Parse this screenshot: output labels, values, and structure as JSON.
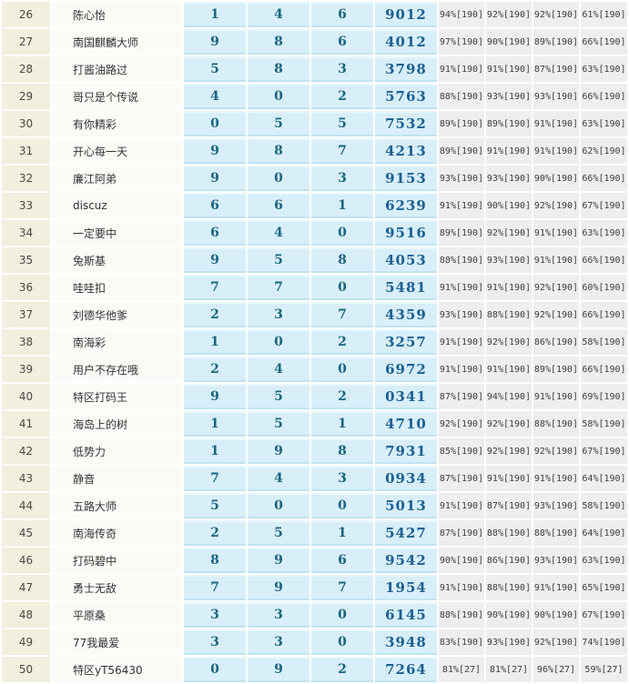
{
  "table": {
    "rows": [
      {
        "rank": "26",
        "name": "陈心怡",
        "digits": [
          "1",
          "4",
          "6"
        ],
        "number": "9012",
        "stats": [
          "94%[190]",
          "92%[190]",
          "92%[190]",
          "61%[190]"
        ]
      },
      {
        "rank": "27",
        "name": "南国麒麟大师",
        "digits": [
          "9",
          "8",
          "6"
        ],
        "number": "4012",
        "stats": [
          "97%[190]",
          "90%[190]",
          "89%[190]",
          "66%[190]"
        ]
      },
      {
        "rank": "28",
        "name": "打酱油路过",
        "digits": [
          "5",
          "8",
          "3"
        ],
        "number": "3798",
        "stats": [
          "91%[190]",
          "91%[190]",
          "87%[190]",
          "63%[190]"
        ]
      },
      {
        "rank": "29",
        "name": "哥只是个传说",
        "digits": [
          "4",
          "0",
          "2"
        ],
        "number": "5763",
        "stats": [
          "88%[190]",
          "93%[190]",
          "93%[190]",
          "66%[190]"
        ]
      },
      {
        "rank": "30",
        "name": "有你精彩",
        "digits": [
          "0",
          "5",
          "5"
        ],
        "number": "7532",
        "stats": [
          "89%[190]",
          "89%[190]",
          "91%[190]",
          "63%[190]"
        ]
      },
      {
        "rank": "31",
        "name": "开心每一天",
        "digits": [
          "9",
          "8",
          "7"
        ],
        "number": "4213",
        "stats": [
          "89%[190]",
          "91%[190]",
          "91%[190]",
          "62%[190]"
        ]
      },
      {
        "rank": "32",
        "name": "廉江阿弟",
        "digits": [
          "9",
          "0",
          "3"
        ],
        "number": "9153",
        "stats": [
          "93%[190]",
          "93%[190]",
          "90%[190]",
          "66%[190]"
        ]
      },
      {
        "rank": "33",
        "name": "discuz",
        "digits": [
          "6",
          "6",
          "1"
        ],
        "number": "6239",
        "stats": [
          "91%[190]",
          "90%[190]",
          "92%[190]",
          "67%[190]"
        ]
      },
      {
        "rank": "34",
        "name": "一定要中",
        "digits": [
          "6",
          "4",
          "0"
        ],
        "number": "9516",
        "stats": [
          "89%[190]",
          "92%[190]",
          "91%[190]",
          "63%[190]"
        ]
      },
      {
        "rank": "35",
        "name": "兔斯基",
        "digits": [
          "9",
          "5",
          "8"
        ],
        "number": "4053",
        "stats": [
          "88%[190]",
          "93%[190]",
          "91%[190]",
          "66%[190]"
        ]
      },
      {
        "rank": "36",
        "name": "哇哇扣",
        "digits": [
          "7",
          "7",
          "0"
        ],
        "number": "5481",
        "stats": [
          "91%[190]",
          "91%[190]",
          "92%[190]",
          "60%[190]"
        ]
      },
      {
        "rank": "37",
        "name": "刘德华他爹",
        "digits": [
          "2",
          "3",
          "7"
        ],
        "number": "4359",
        "stats": [
          "93%[190]",
          "88%[190]",
          "92%[190]",
          "66%[190]"
        ]
      },
      {
        "rank": "38",
        "name": "南海彩",
        "digits": [
          "1",
          "0",
          "2"
        ],
        "number": "3257",
        "stats": [
          "91%[190]",
          "92%[190]",
          "86%[190]",
          "58%[190]"
        ]
      },
      {
        "rank": "39",
        "name": "用户不存在哦",
        "digits": [
          "2",
          "4",
          "0"
        ],
        "number": "6972",
        "stats": [
          "91%[190]",
          "91%[190]",
          "89%[190]",
          "66%[190]"
        ]
      },
      {
        "rank": "40",
        "name": "特区打码王",
        "digits": [
          "9",
          "5",
          "2"
        ],
        "number": "0341",
        "stats": [
          "87%[190]",
          "94%[190]",
          "91%[190]",
          "69%[190]"
        ]
      },
      {
        "rank": "41",
        "name": "海岛上的树",
        "digits": [
          "1",
          "5",
          "1"
        ],
        "number": "4710",
        "stats": [
          "92%[190]",
          "92%[190]",
          "88%[190]",
          "58%[190]"
        ]
      },
      {
        "rank": "42",
        "name": "低势力",
        "digits": [
          "1",
          "9",
          "8"
        ],
        "number": "7931",
        "stats": [
          "85%[190]",
          "92%[190]",
          "92%[190]",
          "67%[190]"
        ]
      },
      {
        "rank": "43",
        "name": "静音",
        "digits": [
          "7",
          "4",
          "3"
        ],
        "number": "0934",
        "stats": [
          "87%[190]",
          "91%[190]",
          "91%[190]",
          "64%[190]"
        ]
      },
      {
        "rank": "44",
        "name": "五路大师",
        "digits": [
          "5",
          "0",
          "0"
        ],
        "number": "5013",
        "stats": [
          "91%[190]",
          "87%[190]",
          "93%[190]",
          "58%[190]"
        ]
      },
      {
        "rank": "45",
        "name": "南海传奇",
        "digits": [
          "2",
          "5",
          "1"
        ],
        "number": "5427",
        "stats": [
          "87%[190]",
          "88%[190]",
          "88%[190]",
          "64%[190]"
        ]
      },
      {
        "rank": "46",
        "name": "打码碧中",
        "digits": [
          "8",
          "9",
          "6"
        ],
        "number": "9542",
        "stats": [
          "90%[190]",
          "86%[190]",
          "93%[190]",
          "63%[190]"
        ]
      },
      {
        "rank": "47",
        "name": "勇士无敌",
        "digits": [
          "7",
          "9",
          "7"
        ],
        "number": "1954",
        "stats": [
          "91%[190]",
          "88%[190]",
          "91%[190]",
          "65%[190]"
        ]
      },
      {
        "rank": "48",
        "name": "平原桑",
        "digits": [
          "3",
          "3",
          "0"
        ],
        "number": "6145",
        "stats": [
          "88%[190]",
          "90%[190]",
          "90%[190]",
          "67%[190]"
        ]
      },
      {
        "rank": "49",
        "name": "77我最爱",
        "digits": [
          "3",
          "3",
          "0"
        ],
        "number": "3948",
        "stats": [
          "83%[190]",
          "93%[190]",
          "92%[190]",
          "74%[190]"
        ]
      },
      {
        "rank": "50",
        "name": "特区yT56430",
        "digits": [
          "0",
          "9",
          "2"
        ],
        "number": "7264",
        "stats": [
          "81%[27]",
          "81%[27]",
          "96%[27]",
          "59%[27]"
        ]
      }
    ]
  },
  "colors": {
    "rank_bg": "#f2efdf",
    "name_bg": "#fbfbf7",
    "blue_bg": "#d8effa",
    "blue_border_light": "#e9f8fe",
    "blue_border_dark": "#c2e3f1",
    "digit_color": "#1a6580",
    "number_color": "#1d6094",
    "stat_bg": "#eeeeee",
    "stat_text": "#3d3d3d",
    "separator": "#ffffff"
  }
}
